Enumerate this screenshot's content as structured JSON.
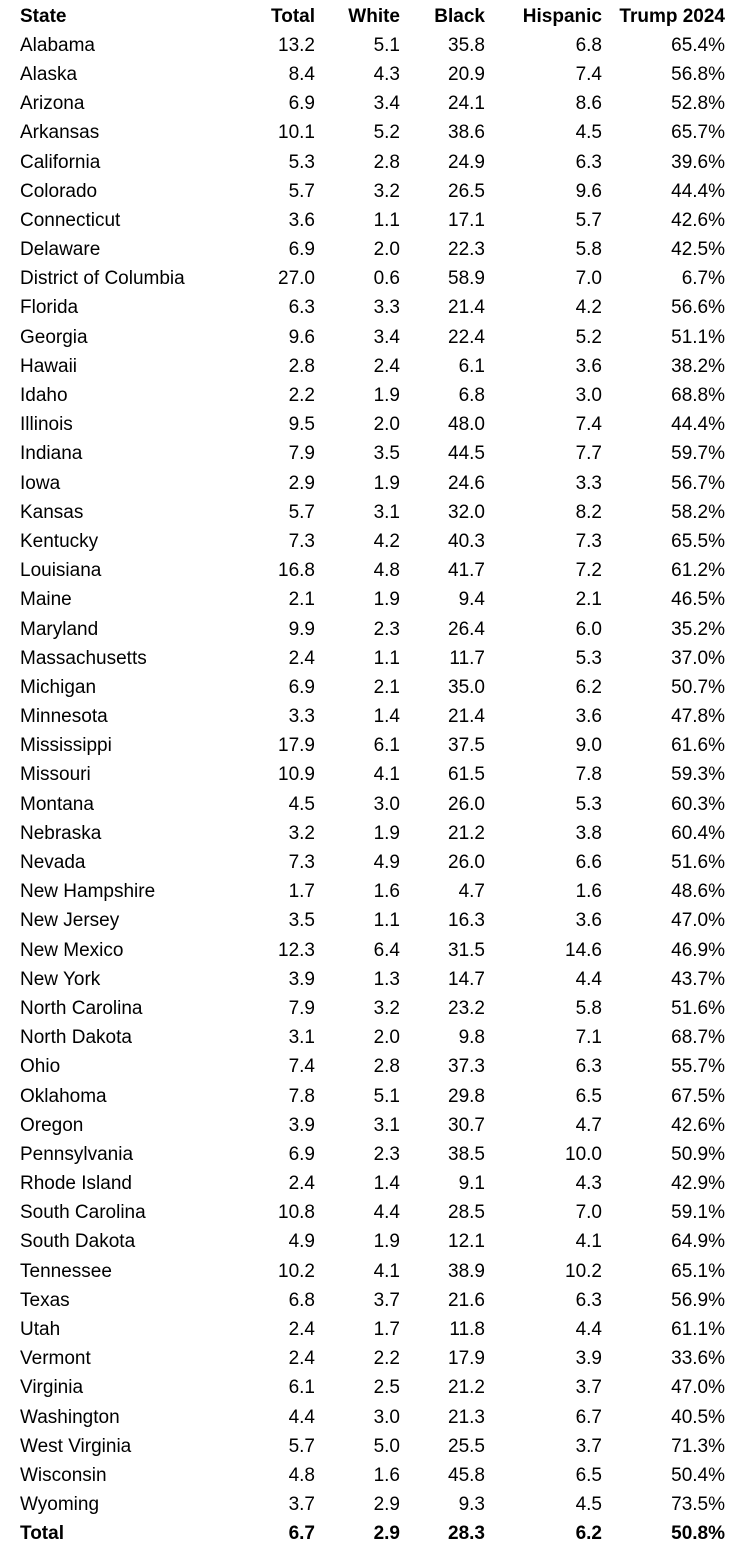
{
  "chart_data": {
    "type": "table",
    "columns": [
      "State",
      "Total",
      "White",
      "Black",
      "Hispanic",
      "Trump 2024"
    ],
    "rows": [
      [
        "Alabama",
        "13.2",
        "5.1",
        "35.8",
        "6.8",
        "65.4%"
      ],
      [
        "Alaska",
        "8.4",
        "4.3",
        "20.9",
        "7.4",
        "56.8%"
      ],
      [
        "Arizona",
        "6.9",
        "3.4",
        "24.1",
        "8.6",
        "52.8%"
      ],
      [
        "Arkansas",
        "10.1",
        "5.2",
        "38.6",
        "4.5",
        "65.7%"
      ],
      [
        "California",
        "5.3",
        "2.8",
        "24.9",
        "6.3",
        "39.6%"
      ],
      [
        "Colorado",
        "5.7",
        "3.2",
        "26.5",
        "9.6",
        "44.4%"
      ],
      [
        "Connecticut",
        "3.6",
        "1.1",
        "17.1",
        "5.7",
        "42.6%"
      ],
      [
        "Delaware",
        "6.9",
        "2.0",
        "22.3",
        "5.8",
        "42.5%"
      ],
      [
        "District of Columbia",
        "27.0",
        "0.6",
        "58.9",
        "7.0",
        "6.7%"
      ],
      [
        "Florida",
        "6.3",
        "3.3",
        "21.4",
        "4.2",
        "56.6%"
      ],
      [
        "Georgia",
        "9.6",
        "3.4",
        "22.4",
        "5.2",
        "51.1%"
      ],
      [
        "Hawaii",
        "2.8",
        "2.4",
        "6.1",
        "3.6",
        "38.2%"
      ],
      [
        "Idaho",
        "2.2",
        "1.9",
        "6.8",
        "3.0",
        "68.8%"
      ],
      [
        "Illinois",
        "9.5",
        "2.0",
        "48.0",
        "7.4",
        "44.4%"
      ],
      [
        "Indiana",
        "7.9",
        "3.5",
        "44.5",
        "7.7",
        "59.7%"
      ],
      [
        "Iowa",
        "2.9",
        "1.9",
        "24.6",
        "3.3",
        "56.7%"
      ],
      [
        "Kansas",
        "5.7",
        "3.1",
        "32.0",
        "8.2",
        "58.2%"
      ],
      [
        "Kentucky",
        "7.3",
        "4.2",
        "40.3",
        "7.3",
        "65.5%"
      ],
      [
        "Louisiana",
        "16.8",
        "4.8",
        "41.7",
        "7.2",
        "61.2%"
      ],
      [
        "Maine",
        "2.1",
        "1.9",
        "9.4",
        "2.1",
        "46.5%"
      ],
      [
        "Maryland",
        "9.9",
        "2.3",
        "26.4",
        "6.0",
        "35.2%"
      ],
      [
        "Massachusetts",
        "2.4",
        "1.1",
        "11.7",
        "5.3",
        "37.0%"
      ],
      [
        "Michigan",
        "6.9",
        "2.1",
        "35.0",
        "6.2",
        "50.7%"
      ],
      [
        "Minnesota",
        "3.3",
        "1.4",
        "21.4",
        "3.6",
        "47.8%"
      ],
      [
        "Mississippi",
        "17.9",
        "6.1",
        "37.5",
        "9.0",
        "61.6%"
      ],
      [
        "Missouri",
        "10.9",
        "4.1",
        "61.5",
        "7.8",
        "59.3%"
      ],
      [
        "Montana",
        "4.5",
        "3.0",
        "26.0",
        "5.3",
        "60.3%"
      ],
      [
        "Nebraska",
        "3.2",
        "1.9",
        "21.2",
        "3.8",
        "60.4%"
      ],
      [
        "Nevada",
        "7.3",
        "4.9",
        "26.0",
        "6.6",
        "51.6%"
      ],
      [
        "New Hampshire",
        "1.7",
        "1.6",
        "4.7",
        "1.6",
        "48.6%"
      ],
      [
        "New Jersey",
        "3.5",
        "1.1",
        "16.3",
        "3.6",
        "47.0%"
      ],
      [
        "New Mexico",
        "12.3",
        "6.4",
        "31.5",
        "14.6",
        "46.9%"
      ],
      [
        "New York",
        "3.9",
        "1.3",
        "14.7",
        "4.4",
        "43.7%"
      ],
      [
        "North Carolina",
        "7.9",
        "3.2",
        "23.2",
        "5.8",
        "51.6%"
      ],
      [
        "North Dakota",
        "3.1",
        "2.0",
        "9.8",
        "7.1",
        "68.7%"
      ],
      [
        "Ohio",
        "7.4",
        "2.8",
        "37.3",
        "6.3",
        "55.7%"
      ],
      [
        "Oklahoma",
        "7.8",
        "5.1",
        "29.8",
        "6.5",
        "67.5%"
      ],
      [
        "Oregon",
        "3.9",
        "3.1",
        "30.7",
        "4.7",
        "42.6%"
      ],
      [
        "Pennsylvania",
        "6.9",
        "2.3",
        "38.5",
        "10.0",
        "50.9%"
      ],
      [
        "Rhode Island",
        "2.4",
        "1.4",
        "9.1",
        "4.3",
        "42.9%"
      ],
      [
        "South Carolina",
        "10.8",
        "4.4",
        "28.5",
        "7.0",
        "59.1%"
      ],
      [
        "South Dakota",
        "4.9",
        "1.9",
        "12.1",
        "4.1",
        "64.9%"
      ],
      [
        "Tennessee",
        "10.2",
        "4.1",
        "38.9",
        "10.2",
        "65.1%"
      ],
      [
        "Texas",
        "6.8",
        "3.7",
        "21.6",
        "6.3",
        "56.9%"
      ],
      [
        "Utah",
        "2.4",
        "1.7",
        "11.8",
        "4.4",
        "61.1%"
      ],
      [
        "Vermont",
        "2.4",
        "2.2",
        "17.9",
        "3.9",
        "33.6%"
      ],
      [
        "Virginia",
        "6.1",
        "2.5",
        "21.2",
        "3.7",
        "47.0%"
      ],
      [
        "Washington",
        "4.4",
        "3.0",
        "21.3",
        "6.7",
        "40.5%"
      ],
      [
        "West Virginia",
        "5.7",
        "5.0",
        "25.5",
        "3.7",
        "71.3%"
      ],
      [
        "Wisconsin",
        "4.8",
        "1.6",
        "45.8",
        "6.5",
        "50.4%"
      ],
      [
        "Wyoming",
        "3.7",
        "2.9",
        "9.3",
        "4.5",
        "73.5%"
      ]
    ],
    "total_row": [
      "Total",
      "6.7",
      "2.9",
      "28.3",
      "6.2",
      "50.8%"
    ],
    "layout": {
      "header_bold": true,
      "total_row_bold": true,
      "text_color": "#000000",
      "background_color": "#ffffff",
      "first_column_align": "left",
      "numeric_columns_align": "right"
    }
  }
}
